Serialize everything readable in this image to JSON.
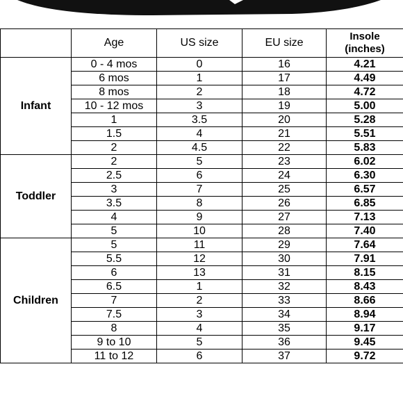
{
  "headers": {
    "age": "Age",
    "us": "US size",
    "eu": "EU size",
    "insole_line1": "Insole",
    "insole_line2": "(inches)"
  },
  "groups": [
    {
      "name": "Infant",
      "rows": [
        {
          "age": "0 - 4 mos",
          "us": "0",
          "eu": "16",
          "insole": "4.21"
        },
        {
          "age": "6 mos",
          "us": "1",
          "eu": "17",
          "insole": "4.49"
        },
        {
          "age": "8 mos",
          "us": "2",
          "eu": "18",
          "insole": "4.72"
        },
        {
          "age": "10 - 12 mos",
          "us": "3",
          "eu": "19",
          "insole": "5.00"
        },
        {
          "age": "1",
          "us": "3.5",
          "eu": "20",
          "insole": "5.28"
        },
        {
          "age": "1.5",
          "us": "4",
          "eu": "21",
          "insole": "5.51"
        },
        {
          "age": "2",
          "us": "4.5",
          "eu": "22",
          "insole": "5.83"
        }
      ]
    },
    {
      "name": "Toddler",
      "rows": [
        {
          "age": "2",
          "us": "5",
          "eu": "23",
          "insole": "6.02"
        },
        {
          "age": "2.5",
          "us": "6",
          "eu": "24",
          "insole": "6.30"
        },
        {
          "age": "3",
          "us": "7",
          "eu": "25",
          "insole": "6.57"
        },
        {
          "age": "3.5",
          "us": "8",
          "eu": "26",
          "insole": "6.85"
        },
        {
          "age": "4",
          "us": "9",
          "eu": "27",
          "insole": "7.13"
        },
        {
          "age": "5",
          "us": "10",
          "eu": "28",
          "insole": "7.40"
        }
      ]
    },
    {
      "name": "Children",
      "rows": [
        {
          "age": "5",
          "us": "11",
          "eu": "29",
          "insole": "7.64"
        },
        {
          "age": "5.5",
          "us": "12",
          "eu": "30",
          "insole": "7.91"
        },
        {
          "age": "6",
          "us": "13",
          "eu": "31",
          "insole": "8.15"
        },
        {
          "age": "6.5",
          "us": "1",
          "eu": "32",
          "insole": "8.43"
        },
        {
          "age": "7",
          "us": "2",
          "eu": "33",
          "insole": "8.66"
        },
        {
          "age": "7.5",
          "us": "3",
          "eu": "34",
          "insole": "8.94"
        },
        {
          "age": "8",
          "us": "4",
          "eu": "35",
          "insole": "9.17"
        },
        {
          "age": "9 to 10",
          "us": "5",
          "eu": "36",
          "insole": "9.45"
        },
        {
          "age": "11 to 12",
          "us": "6",
          "eu": "37",
          "insole": "9.72"
        }
      ]
    }
  ]
}
